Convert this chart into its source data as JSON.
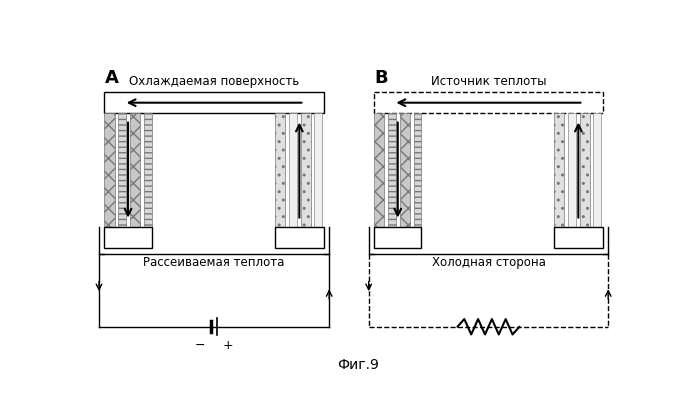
{
  "title": "Фиг.9",
  "label_A": "А",
  "label_B": "В",
  "text_A_top": "Охлаждаемая поверхность",
  "text_A_bottom": "Рассеиваемая теплота",
  "text_B_top": "Источник теплоты",
  "text_B_bottom": "Холодная сторона",
  "bg_color": "#ffffff",
  "line_color": "#000000"
}
